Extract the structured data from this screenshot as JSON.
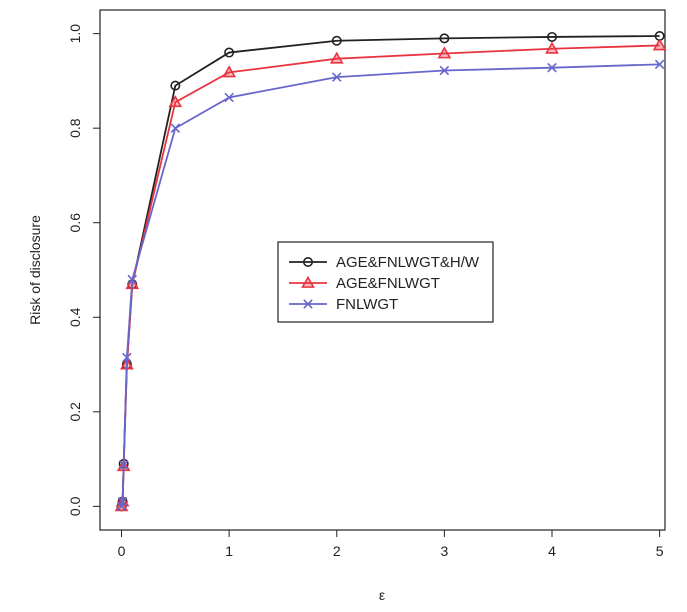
{
  "chart_data": {
    "type": "line",
    "title": "",
    "xlabel": "ε",
    "ylabel": "Risk of disclosure",
    "xlim": [
      -0.2,
      5.05
    ],
    "ylim": [
      -0.05,
      1.05
    ],
    "x_ticks": [
      0,
      1,
      2,
      3,
      4,
      5
    ],
    "x_tick_labels": [
      "0",
      "1",
      "2",
      "3",
      "4",
      "5"
    ],
    "y_ticks": [
      0.0,
      0.2,
      0.4,
      0.6,
      0.8,
      1.0
    ],
    "y_tick_labels": [
      "0.0",
      "0.2",
      "0.4",
      "0.6",
      "0.8",
      "1.0"
    ],
    "grid": false,
    "legend_position": "center",
    "x": [
      0,
      0.01,
      0.02,
      0.05,
      0.1,
      0.5,
      1,
      2,
      3,
      4,
      5
    ],
    "series": [
      {
        "name": "AGE&FNLWGT&H/W",
        "color": "#222222",
        "marker": "circle",
        "values": [
          0.0,
          0.01,
          0.09,
          0.3,
          0.47,
          0.89,
          0.96,
          0.985,
          0.99,
          0.993,
          0.995
        ]
      },
      {
        "name": "AGE&FNLWGT",
        "color": "#e8343f",
        "marker": "triangle",
        "values": [
          0.0,
          0.01,
          0.085,
          0.3,
          0.47,
          0.855,
          0.918,
          0.947,
          0.958,
          0.968,
          0.975
        ]
      },
      {
        "name": "FNLWGT",
        "color": "#6666cc",
        "marker": "cross",
        "values": [
          0.0,
          0.01,
          0.088,
          0.315,
          0.48,
          0.8,
          0.865,
          0.908,
          0.922,
          0.928,
          0.935
        ]
      }
    ]
  }
}
